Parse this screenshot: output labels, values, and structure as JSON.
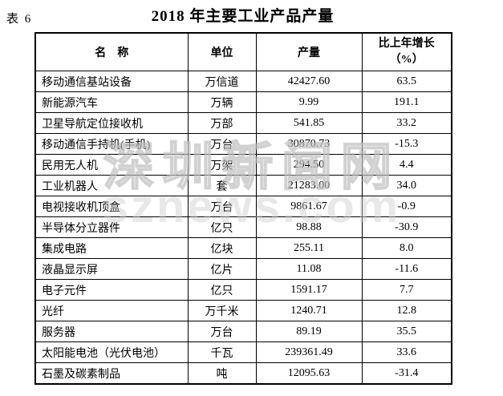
{
  "page": {
    "table_label": "表 6",
    "title": "2018 年主要工业产品产量"
  },
  "watermark": {
    "line1": "深圳新闻网",
    "line2": "sznews.com"
  },
  "colors": {
    "text": "#000000",
    "border": "#000000",
    "background": "#ffffff",
    "watermark_gray": "#d9d9d9"
  },
  "table": {
    "headers": {
      "name": "名　称",
      "unit": "单位",
      "output": "产量",
      "growth_line1": "比上年增长",
      "growth_line2": "（%）"
    },
    "rows": [
      {
        "name": "移动通信基站设备",
        "unit": "万信道",
        "output": "42427.60",
        "growth": "63.5"
      },
      {
        "name": "新能源汽车",
        "unit": "万辆",
        "output": "9.99",
        "growth": "191.1"
      },
      {
        "name": "卫星导航定位接收机",
        "unit": "万部",
        "output": "541.85",
        "growth": "33.2"
      },
      {
        "name": "移动通信手持机(手机)",
        "unit": "万台",
        "output": "30870.73",
        "growth": "-15.3"
      },
      {
        "name": "民用无人机",
        "unit": "万架",
        "output": "294.50",
        "growth": "4.4"
      },
      {
        "name": "工业机器人",
        "unit": "套",
        "output": "21283.00",
        "growth": "34.0"
      },
      {
        "name": "电视接收机顶盒",
        "unit": "万台",
        "output": "9861.67",
        "growth": "-0.9"
      },
      {
        "name": "半导体分立器件",
        "unit": "亿只",
        "output": "98.88",
        "growth": "-30.9"
      },
      {
        "name": "集成电路",
        "unit": "亿块",
        "output": "255.11",
        "growth": "8.0"
      },
      {
        "name": "液晶显示屏",
        "unit": "亿片",
        "output": "11.08",
        "growth": "-11.6"
      },
      {
        "name": "电子元件",
        "unit": "亿只",
        "output": "1591.17",
        "growth": "7.7"
      },
      {
        "name": "光纤",
        "unit": "万千米",
        "output": "1240.71",
        "growth": "12.8"
      },
      {
        "name": "服务器",
        "unit": "万台",
        "output": "89.19",
        "growth": "35.5"
      },
      {
        "name": "太阳能电池（光伏电池）",
        "unit": "千瓦",
        "output": "239361.49",
        "growth": "33.6"
      },
      {
        "name": "石墨及碳素制品",
        "unit": "吨",
        "output": "12095.63",
        "growth": "-31.4"
      }
    ]
  }
}
